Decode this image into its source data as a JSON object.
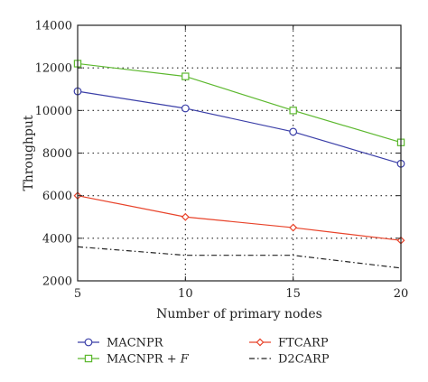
{
  "chart_data": {
    "type": "line",
    "xlabel": "Number of primary nodes",
    "ylabel": "Throughput",
    "xlim": [
      5,
      20
    ],
    "ylim": [
      2000,
      14000
    ],
    "xticks": [
      5,
      10,
      15,
      20
    ],
    "yticks": [
      2000,
      4000,
      6000,
      8000,
      10000,
      12000,
      14000
    ],
    "grid": true,
    "legend_position": "bottom",
    "series": [
      {
        "name": "MACNPR",
        "label_main": "MACNPR",
        "label_suffix": "",
        "color": "#3b3fa8",
        "marker": "circle",
        "dash": "solid",
        "x": [
          5,
          10,
          15,
          20
        ],
        "y": [
          10900,
          10100,
          9000,
          7500
        ]
      },
      {
        "name": "MACNPR + F",
        "label_main": "MACNPR + ",
        "label_suffix": "F",
        "color": "#5cb82e",
        "marker": "square",
        "dash": "solid",
        "x": [
          5,
          10,
          15,
          20
        ],
        "y": [
          12200,
          11600,
          10000,
          8500
        ]
      },
      {
        "name": "FTCARP",
        "label_main": "FTCARP",
        "label_suffix": "",
        "color": "#e8432a",
        "marker": "diamond",
        "dash": "solid",
        "x": [
          5,
          10,
          15,
          20
        ],
        "y": [
          6000,
          5000,
          4500,
          3900
        ]
      },
      {
        "name": "D2CARP",
        "label_main": "D2CARP",
        "label_suffix": "",
        "color": "#222222",
        "marker": "none",
        "dash": "dashdot",
        "x": [
          5,
          10,
          15,
          20
        ],
        "y": [
          3600,
          3200,
          3200,
          2600
        ]
      }
    ]
  }
}
